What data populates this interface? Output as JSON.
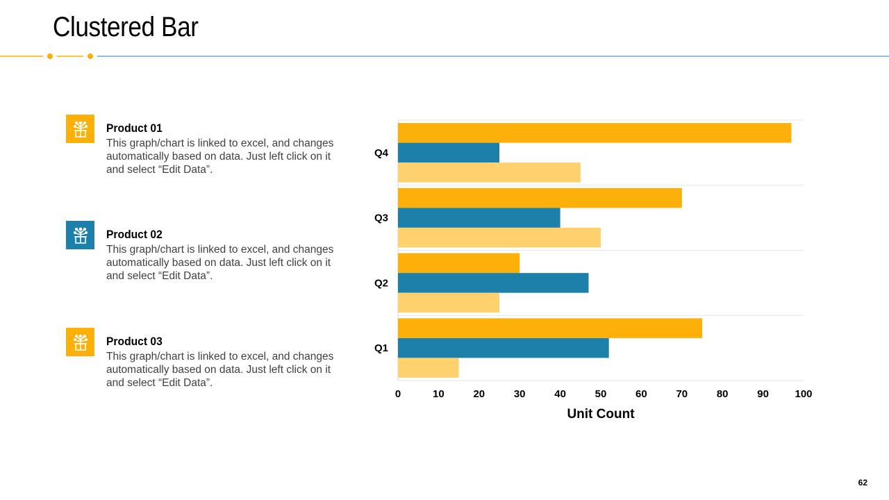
{
  "title": "Clustered Bar",
  "page_number": "62",
  "colors": {
    "accent": "#FDB00A",
    "series1": "#FDB00A",
    "series2": "#1D80AA",
    "series3": "#FED06E",
    "header_line": "#2E75B6"
  },
  "products": [
    {
      "title": "Product 01",
      "text": "This graph/chart is linked to excel, and changes automatically based on data. Just left click on it and select “Edit Data”.",
      "icon": "gift-box-icon",
      "color": "#FDB00A"
    },
    {
      "title": "Product 02",
      "text": "This graph/chart is linked to excel, and changes automatically based on data. Just left click on it and select “Edit Data”.",
      "icon": "gift-box-icon",
      "color": "#1D80AA"
    },
    {
      "title": "Product 03",
      "text": "This graph/chart is linked to excel, and changes automatically based on data. Just left click on it and select “Edit Data”.",
      "icon": "gift-box-icon",
      "color": "#FDB00A"
    }
  ],
  "chart_data": {
    "type": "bar",
    "orientation": "horizontal",
    "categories": [
      "Q1",
      "Q2",
      "Q3",
      "Q4"
    ],
    "series": [
      {
        "name": "Product 01",
        "values": [
          75,
          30,
          70,
          97
        ]
      },
      {
        "name": "Product 02",
        "values": [
          52,
          47,
          40,
          25
        ]
      },
      {
        "name": "Product 03",
        "values": [
          15,
          25,
          50,
          45
        ]
      }
    ],
    "xlabel": "Unit Count",
    "ylabel": "",
    "xlim": [
      0,
      100
    ],
    "xticks": [
      0,
      10,
      20,
      30,
      40,
      50,
      60,
      70,
      80,
      90,
      100
    ],
    "grid": true
  }
}
